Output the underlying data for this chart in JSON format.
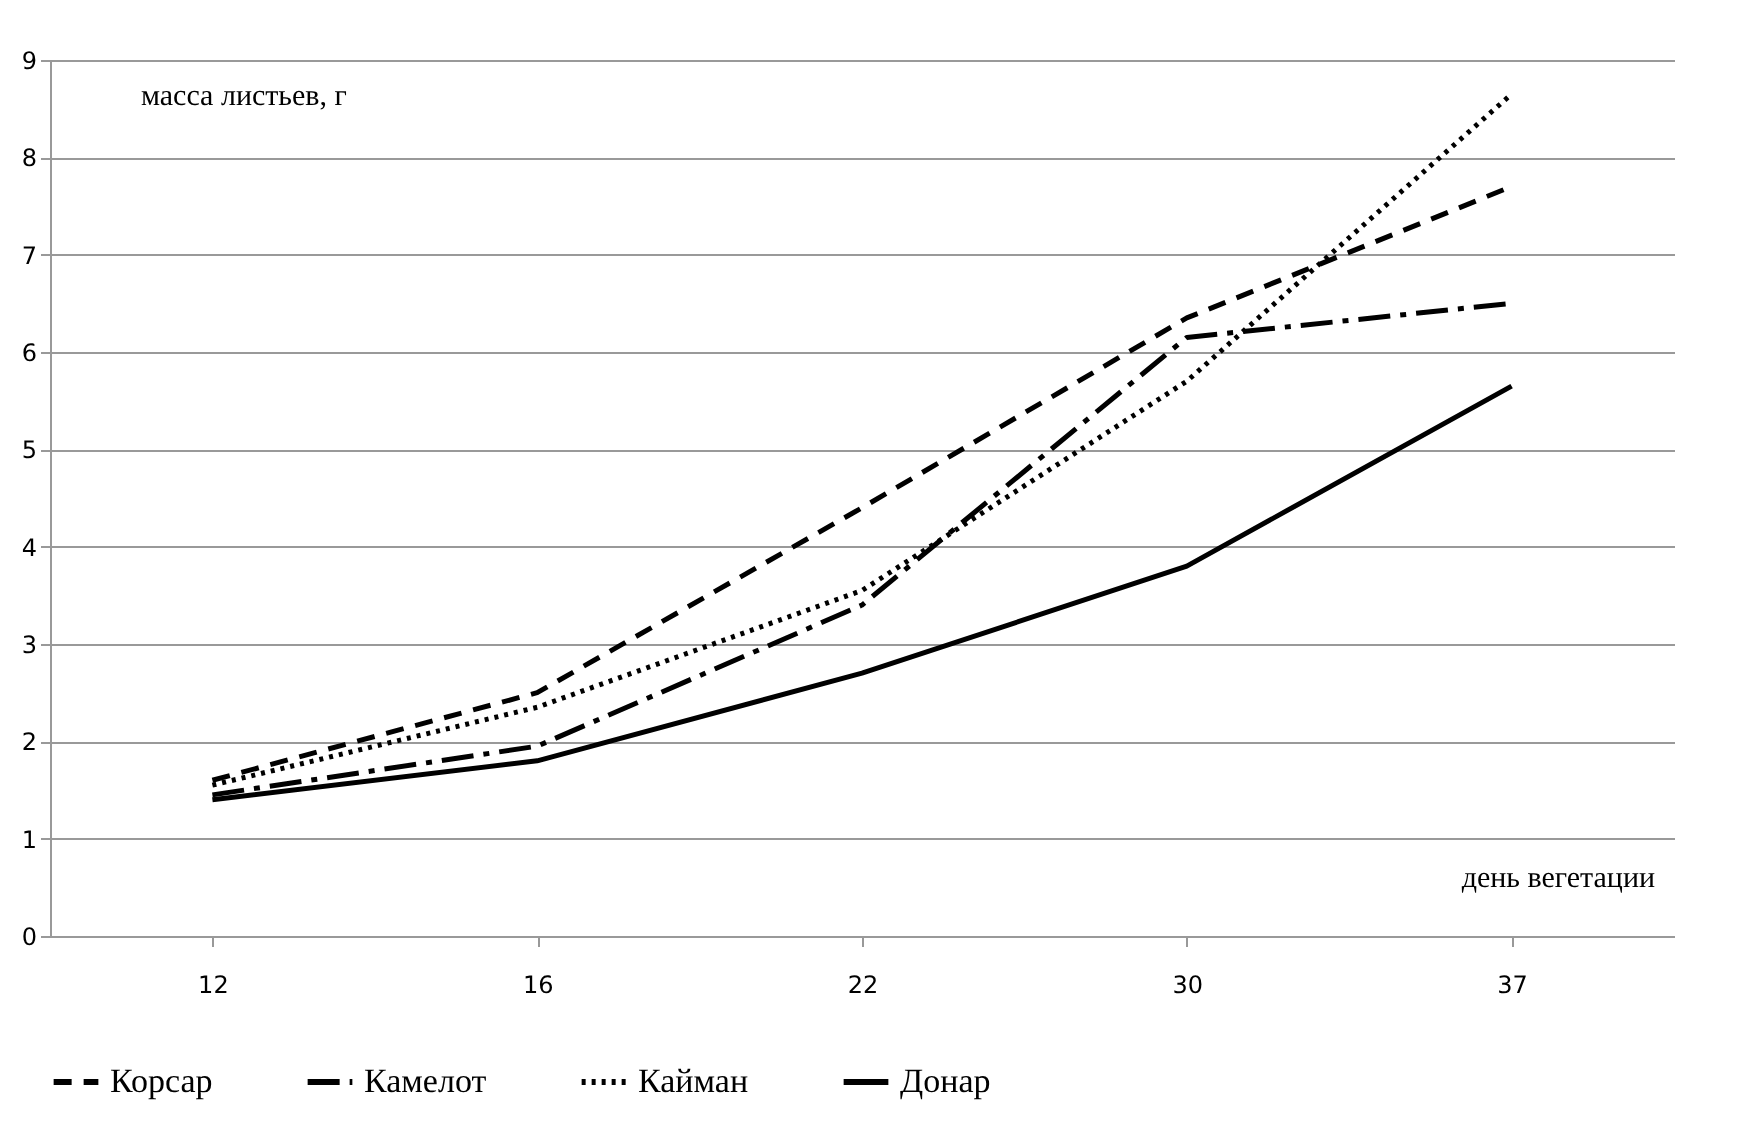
{
  "chart_data": {
    "type": "line",
    "xlabel": "день вегетации",
    "ylabel": "масса листьев, г",
    "categories": [
      "12",
      "16",
      "22",
      "30",
      "37"
    ],
    "series": [
      {
        "name": "Корсар",
        "color": "#000000",
        "line_style": "dashed",
        "values": [
          1.6,
          2.5,
          4.4,
          6.35,
          7.7
        ]
      },
      {
        "name": "Камелот",
        "color": "#000000",
        "line_style": "dashdot",
        "values": [
          1.45,
          1.95,
          3.4,
          6.15,
          6.5
        ]
      },
      {
        "name": "Кайман",
        "color": "#000000",
        "line_style": "dotted",
        "values": [
          1.55,
          2.35,
          3.55,
          5.7,
          8.65
        ]
      },
      {
        "name": "Донар",
        "color": "#000000",
        "line_style": "solid",
        "values": [
          1.4,
          1.8,
          2.7,
          3.8,
          5.65
        ]
      }
    ],
    "ylim": [
      0,
      9
    ],
    "yticks": [
      0,
      1,
      2,
      3,
      4,
      5,
      6,
      7,
      8,
      9
    ],
    "grid": "y",
    "legend": "bottom",
    "marker": "none"
  }
}
